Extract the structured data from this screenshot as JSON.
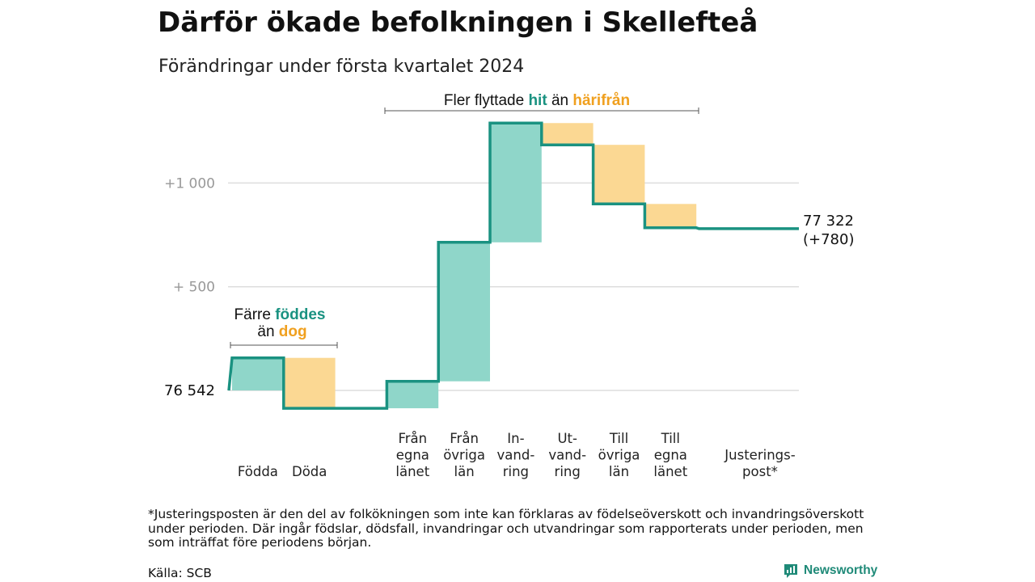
{
  "title": "Därför ökade befolkningen i Skellefteå",
  "subtitle": "Förändringar under första kvartalet 2024",
  "chart_data": {
    "type": "waterfall",
    "start_value": 76542,
    "end_value": 77322,
    "y_ticks": [
      {
        "value": 1000,
        "label": "+1 000"
      },
      {
        "value": 500,
        "label": "+ 500"
      },
      {
        "value": 0,
        "label": "76 542"
      }
    ],
    "ylim": [
      -110,
      1330
    ],
    "steps": [
      {
        "category": "Födda",
        "label_lines": [
          "Födda"
        ],
        "delta": 157,
        "kind": "increase"
      },
      {
        "category": "Döda",
        "label_lines": [
          "Döda"
        ],
        "delta": -243,
        "kind": "decrease"
      },
      {
        "category": "",
        "label_lines": [],
        "delta": 0,
        "kind": "gap"
      },
      {
        "category": "Från egna länet",
        "label_lines": [
          "Från",
          "egna",
          "länet"
        ],
        "delta": 130,
        "kind": "increase"
      },
      {
        "category": "Från övriga län",
        "label_lines": [
          "Från",
          "övriga",
          "län"
        ],
        "delta": 670,
        "kind": "increase"
      },
      {
        "category": "Invandring",
        "label_lines": [
          "In-",
          "vand-",
          "ring"
        ],
        "delta": 575,
        "kind": "increase"
      },
      {
        "category": "Utvandring",
        "label_lines": [
          "Ut-",
          "vand-",
          "ring"
        ],
        "delta": -105,
        "kind": "decrease"
      },
      {
        "category": "Till övriga län",
        "label_lines": [
          "Till",
          "övriga",
          "län"
        ],
        "delta": -285,
        "kind": "decrease"
      },
      {
        "category": "Till egna länet",
        "label_lines": [
          "Till",
          "egna",
          "länet"
        ],
        "delta": -115,
        "kind": "decrease"
      },
      {
        "category": "Justeringspost*",
        "label_lines": [
          "Justerings-",
          "post*"
        ],
        "delta": -4,
        "kind": "adjustment"
      }
    ],
    "end_label": [
      "77 322",
      "(+780)"
    ],
    "annotations": {
      "births": {
        "line1": "Färre",
        "highlight1": "föddes",
        "line2": "än",
        "highlight2": "dog"
      },
      "migration": {
        "text": "Fler flyttade",
        "highlight1": "hit",
        "middle": "än",
        "highlight2": "härifrån"
      }
    }
  },
  "colors": {
    "increase_fill": "#8fd6c9",
    "decrease_fill": "#fbd893",
    "step_line": "#1a9281",
    "highlight_teal": "#1a9281",
    "highlight_orange": "#f0a01f",
    "gridline": "#dddddd"
  },
  "footnote": "*Justeringsposten är den del av folkökningen som inte kan förklaras av födelseöverskott och invandringsöverskott under perioden. Där ingår födslar, dödsfall, invandringar och utvandringar som rapporterats under perioden, men som inträffat före periodens början.",
  "source": "Källa: SCB",
  "brand": {
    "name": "Newsworthy",
    "icon": "newsworthy-logo-icon"
  }
}
